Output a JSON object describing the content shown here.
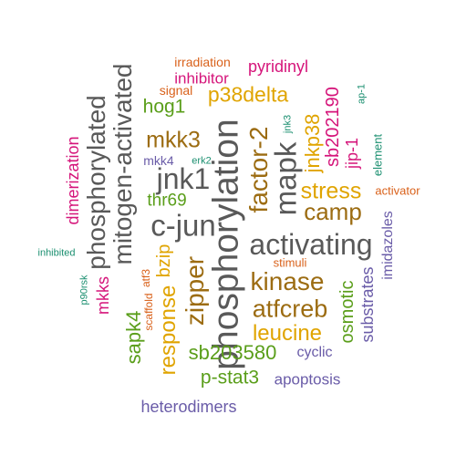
{
  "palette": {
    "grey": "#595959",
    "brown": "#9C6C12",
    "gold": "#E0A400",
    "green": "#5A9E1A",
    "magenta": "#D5147A",
    "purple": "#6A5CA8",
    "teal": "#1B8F70",
    "orange": "#D9611A"
  },
  "words": [
    {
      "text": "phosphorylation",
      "color": "grey"
    },
    {
      "text": "c-jun",
      "color": "grey"
    },
    {
      "text": "activating",
      "color": "grey"
    },
    {
      "text": "phosphorylated",
      "color": "grey"
    },
    {
      "text": "mitogen-activated",
      "color": "grey"
    },
    {
      "text": "jnk1",
      "color": "grey"
    },
    {
      "text": "mapk",
      "color": "grey"
    },
    {
      "text": "factor-2",
      "color": "brown"
    },
    {
      "text": "kinase",
      "color": "brown"
    },
    {
      "text": "atfcreb",
      "color": "brown"
    },
    {
      "text": "camp",
      "color": "brown"
    },
    {
      "text": "mkk3",
      "color": "brown"
    },
    {
      "text": "zipper",
      "color": "brown"
    },
    {
      "text": "stress",
      "color": "gold"
    },
    {
      "text": "leucine",
      "color": "gold"
    },
    {
      "text": "p38delta",
      "color": "gold"
    },
    {
      "text": "response",
      "color": "gold"
    },
    {
      "text": "jnkp38",
      "color": "gold"
    },
    {
      "text": "bzip",
      "color": "gold"
    },
    {
      "text": "sb203580",
      "color": "green"
    },
    {
      "text": "p-stat3",
      "color": "green"
    },
    {
      "text": "sapk4",
      "color": "green"
    },
    {
      "text": "thr69",
      "color": "green"
    },
    {
      "text": "hog1",
      "color": "green"
    },
    {
      "text": "osmotic",
      "color": "green"
    },
    {
      "text": "sb202190",
      "color": "magenta"
    },
    {
      "text": "jip-1",
      "color": "magenta"
    },
    {
      "text": "pyridinyl",
      "color": "magenta"
    },
    {
      "text": "inhibitor",
      "color": "magenta"
    },
    {
      "text": "dimerization",
      "color": "magenta"
    },
    {
      "text": "mkks",
      "color": "magenta"
    },
    {
      "text": "heterodimers",
      "color": "purple"
    },
    {
      "text": "apoptosis",
      "color": "purple"
    },
    {
      "text": "substrates",
      "color": "purple"
    },
    {
      "text": "imidazoles",
      "color": "purple"
    },
    {
      "text": "cyclic",
      "color": "purple"
    },
    {
      "text": "mkk4",
      "color": "purple"
    },
    {
      "text": "jnk3",
      "color": "teal"
    },
    {
      "text": "ap-1",
      "color": "teal"
    },
    {
      "text": "element",
      "color": "teal"
    },
    {
      "text": "erk2",
      "color": "teal"
    },
    {
      "text": "inhibited",
      "color": "teal"
    },
    {
      "text": "p90rsk",
      "color": "teal"
    },
    {
      "text": "irradiation",
      "color": "orange"
    },
    {
      "text": "signal",
      "color": "orange"
    },
    {
      "text": "stimuli",
      "color": "orange"
    },
    {
      "text": "activator",
      "color": "orange"
    },
    {
      "text": "atf3",
      "color": "orange"
    },
    {
      "text": "scaffold",
      "color": "orange"
    }
  ]
}
